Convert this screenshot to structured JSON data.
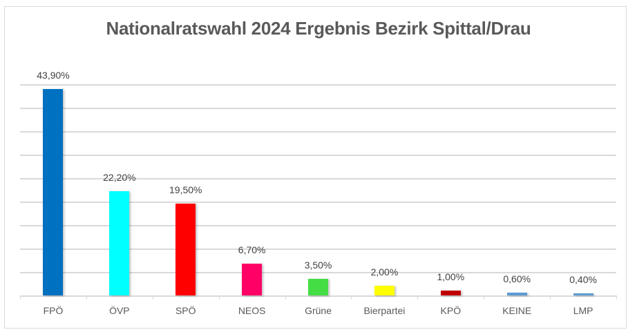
{
  "chart_data": {
    "type": "bar",
    "title": "Nationalratswahl 2024 Ergebnis Bezirk Spittal/Drau",
    "xlabel": "",
    "ylabel": "",
    "ylim": [
      0,
      45
    ],
    "grid": true,
    "gridline_step": 5,
    "legend": "none",
    "categories": [
      "FPÖ",
      "ÖVP",
      "SPÖ",
      "NEOS",
      "Grüne",
      "Bierpartei",
      "KPÖ",
      "KEINE",
      "LMP"
    ],
    "values": [
      43.9,
      22.2,
      19.5,
      6.7,
      3.5,
      2.0,
      1.0,
      0.6,
      0.4
    ],
    "labels": [
      "43,90%",
      "22,20%",
      "19,50%",
      "6,70%",
      "3,50%",
      "2,00%",
      "1,00%",
      "0,60%",
      "0,40%"
    ],
    "colors": [
      "#0070c0",
      "#00ffff",
      "#ff0000",
      "#ff0066",
      "#44dd44",
      "#ffff00",
      "#c00000",
      "#5b9bd5",
      "#5b9bd5"
    ]
  }
}
